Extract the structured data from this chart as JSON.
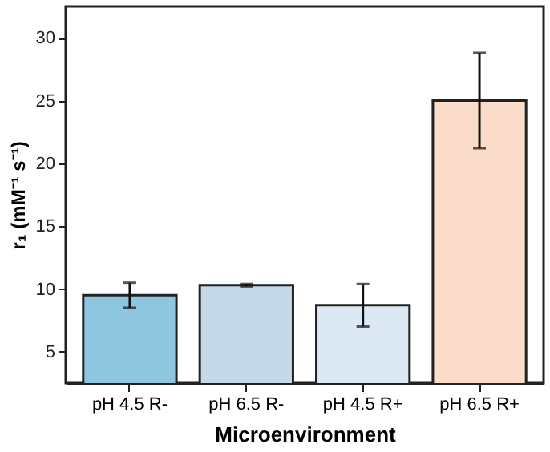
{
  "chart_data": {
    "type": "bar",
    "xlabel": "Microenvironment",
    "ylabel": "r₁ (mM⁻¹ s⁻¹)",
    "categories": [
      "pH 4.5 R-",
      "pH 6.5 R-",
      "pH 4.5 R+",
      "pH 6.5 R+"
    ],
    "values": [
      9.5,
      10.3,
      8.7,
      25.0
    ],
    "errors": [
      1.0,
      0.1,
      1.7,
      3.8
    ],
    "colors": [
      "#8ec6e0",
      "#c5d9e8",
      "#dce9f5",
      "#fbdccb"
    ],
    "ylim": [
      2.5,
      32.5
    ],
    "yticks": [
      5,
      10,
      15,
      20,
      25,
      30
    ],
    "grid": false
  }
}
